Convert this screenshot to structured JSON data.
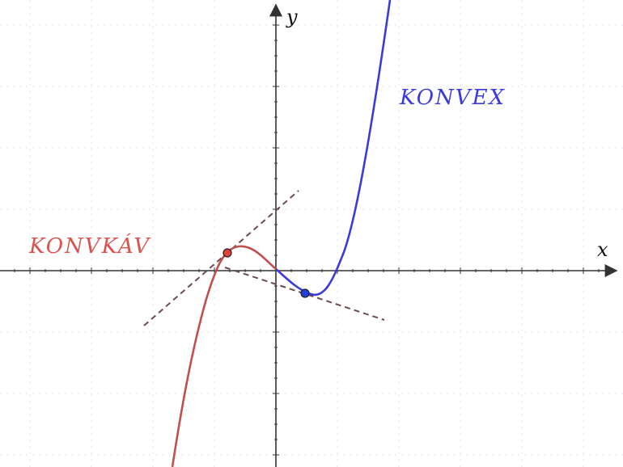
{
  "axes": {
    "x_label": "x",
    "y_label": "y"
  },
  "regions": {
    "concave_label": "KONVKÁV",
    "convex_label": "KONVEX"
  },
  "colors": {
    "concave": "#c0504d",
    "convex": "#3b3bdb",
    "tangent": "#6b4c4c",
    "axis": "#333333",
    "tick": "#333333",
    "point_red_fill": "#e0423a",
    "point_blue_fill": "#1f3fe0",
    "point_stroke": "#222222"
  },
  "points": [
    {
      "name": "tangent-point-concave",
      "color": "red"
    },
    {
      "name": "tangent-point-convex",
      "color": "blue"
    }
  ]
}
